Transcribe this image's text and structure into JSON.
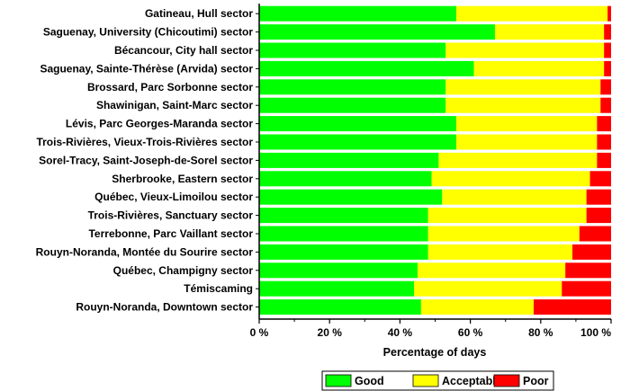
{
  "chart_data": {
    "type": "bar",
    "orientation": "horizontal",
    "stacked": true,
    "categories": [
      "Gatineau, Hull sector",
      "Saguenay, University (Chicoutimi) sector",
      "Bécancour, City hall sector",
      "Saguenay, Sainte-Thérèse (Arvida) sector",
      "Brossard, Parc Sorbonne sector",
      "Shawinigan, Saint-Marc sector",
      "Lévis, Parc Georges-Maranda sector",
      "Trois-Rivières, Vieux-Trois-Rivières sector",
      "Sorel-Tracy, Saint-Joseph-de-Sorel sector",
      "Sherbrooke, Eastern sector",
      "Québec, Vieux-Limoilou sector",
      "Trois-Rivières, Sanctuary sector",
      "Terrebonne, Parc Vaillant sector",
      "Rouyn-Noranda, Montée du Sourire sector",
      "Québec, Champigny sector",
      "Témiscaming",
      "Rouyn-Noranda, Downtown sector"
    ],
    "series": [
      {
        "name": "Good",
        "color": "#00ff00",
        "values": [
          56,
          67,
          53,
          61,
          53,
          53,
          56,
          56,
          51,
          49,
          52,
          48,
          48,
          48,
          45,
          44,
          46
        ]
      },
      {
        "name": "Acceptable",
        "color": "#ffff00",
        "values": [
          43,
          31,
          45,
          37,
          44,
          44,
          40,
          40,
          45,
          45,
          41,
          45,
          43,
          41,
          42,
          42,
          32
        ]
      },
      {
        "name": "Poor",
        "color": "#ff0000",
        "values": [
          1,
          2,
          2,
          2,
          3,
          3,
          4,
          4,
          4,
          6,
          7,
          7,
          9,
          11,
          13,
          14,
          22
        ]
      }
    ],
    "xlim": [
      0,
      100
    ],
    "xticks": [
      "0 %",
      "20 %",
      "40 %",
      "60 %",
      "80 %",
      "100 %"
    ],
    "xlabel": "Percentage of days",
    "ylabel": "",
    "title": "",
    "legend": {
      "position": "bottom",
      "items": [
        "Good",
        "Acceptable",
        "Poor"
      ]
    }
  }
}
